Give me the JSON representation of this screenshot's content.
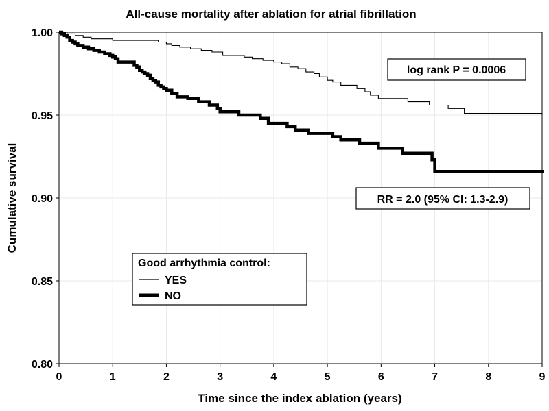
{
  "chart_data": {
    "type": "line",
    "title": "All-cause mortality after ablation for atrial fibrillation",
    "xlabel": "Time since the index ablation (years)",
    "ylabel": "Cumulative survival",
    "xlim": [
      0,
      9
    ],
    "ylim": [
      0.8,
      1.0
    ],
    "x_ticks": [
      "0",
      "1",
      "2",
      "3",
      "4",
      "5",
      "6",
      "7",
      "8",
      "9"
    ],
    "y_ticks": [
      "0.80",
      "0.85",
      "0.90",
      "0.95",
      "1.00"
    ],
    "grid": true,
    "step": true,
    "legend": {
      "title": "Good arrhythmia control:",
      "placement": "lower-left",
      "entries": [
        "YES",
        "NO"
      ]
    },
    "annotations": [
      {
        "text": "log rank P = 0.0006",
        "placement": "upper-right"
      },
      {
        "text": "RR = 2.0 (95% CI: 1.3-2.9)",
        "placement": "center-right"
      }
    ],
    "series": [
      {
        "name": "YES",
        "color": "#000000",
        "style": "thin",
        "x": [
          0,
          0.15,
          0.3,
          0.45,
          0.6,
          0.75,
          1.0,
          1.3,
          1.55,
          1.85,
          2.0,
          2.1,
          2.25,
          2.45,
          2.65,
          2.85,
          3.05,
          3.25,
          3.45,
          3.6,
          3.8,
          4.0,
          4.15,
          4.3,
          4.45,
          4.6,
          4.75,
          4.85,
          5.0,
          5.1,
          5.25,
          5.4,
          5.55,
          5.7,
          5.8,
          5.95,
          6.2,
          6.5,
          6.9,
          7.25,
          7.55,
          9.0
        ],
        "y": [
          1.0,
          0.999,
          0.998,
          0.997,
          0.996,
          0.996,
          0.995,
          0.995,
          0.995,
          0.994,
          0.993,
          0.992,
          0.991,
          0.99,
          0.989,
          0.988,
          0.986,
          0.986,
          0.985,
          0.984,
          0.983,
          0.982,
          0.981,
          0.979,
          0.978,
          0.976,
          0.975,
          0.973,
          0.971,
          0.97,
          0.968,
          0.968,
          0.966,
          0.964,
          0.962,
          0.96,
          0.96,
          0.958,
          0.956,
          0.954,
          0.951,
          0.95
        ]
      },
      {
        "name": "NO",
        "color": "#000000",
        "style": "thick",
        "x": [
          0,
          0.05,
          0.1,
          0.15,
          0.2,
          0.25,
          0.3,
          0.35,
          0.45,
          0.55,
          0.65,
          0.75,
          0.85,
          0.95,
          1.0,
          1.05,
          1.1,
          1.4,
          1.45,
          1.5,
          1.55,
          1.6,
          1.65,
          1.7,
          1.75,
          1.8,
          1.85,
          1.9,
          1.95,
          2.0,
          2.1,
          2.2,
          2.4,
          2.6,
          2.8,
          2.95,
          3.0,
          3.35,
          3.75,
          3.9,
          4.25,
          4.4,
          4.65,
          5.1,
          5.25,
          5.6,
          5.95,
          6.4,
          6.95,
          7.0,
          9.0
        ],
        "y": [
          1.0,
          0.999,
          0.998,
          0.997,
          0.995,
          0.994,
          0.993,
          0.992,
          0.991,
          0.99,
          0.989,
          0.988,
          0.987,
          0.986,
          0.985,
          0.984,
          0.982,
          0.98,
          0.979,
          0.977,
          0.976,
          0.975,
          0.974,
          0.972,
          0.971,
          0.97,
          0.968,
          0.967,
          0.966,
          0.965,
          0.963,
          0.961,
          0.96,
          0.958,
          0.956,
          0.954,
          0.952,
          0.95,
          0.948,
          0.945,
          0.943,
          0.941,
          0.939,
          0.937,
          0.935,
          0.933,
          0.93,
          0.927,
          0.923,
          0.916,
          0.915
        ]
      }
    ]
  }
}
